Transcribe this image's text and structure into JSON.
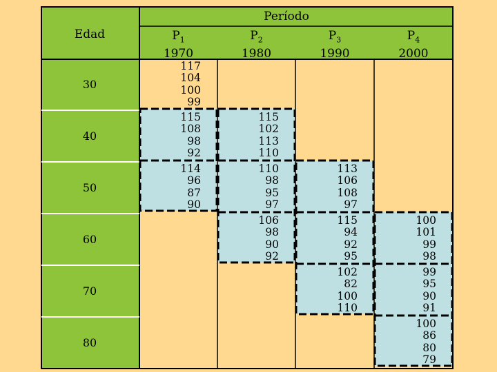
{
  "table": {
    "super_header": "Período",
    "corner_label": "Edad",
    "periods": [
      {
        "label": "P",
        "sub": "1",
        "year": "1970"
      },
      {
        "label": "P",
        "sub": "2",
        "year": "1980"
      },
      {
        "label": "P",
        "sub": "3",
        "year": "1990"
      },
      {
        "label": "P",
        "sub": "4",
        "year": "2000"
      }
    ],
    "ages": [
      "30",
      "40",
      "50",
      "60",
      "70",
      "80"
    ],
    "values": [
      [
        [
          "117",
          "104",
          "100",
          "99"
        ],
        [],
        [],
        []
      ],
      [
        [
          "115",
          "108",
          "98",
          "92"
        ],
        [
          "115",
          "102",
          "113",
          "110"
        ],
        [],
        []
      ],
      [
        [
          "114",
          "96",
          "87",
          "90"
        ],
        [
          "110",
          "98",
          "95",
          "97"
        ],
        [
          "113",
          "106",
          "108",
          "97"
        ],
        []
      ],
      [
        [],
        [
          "106",
          "98",
          "90",
          "92"
        ],
        [
          "115",
          "94",
          "92",
          "95"
        ],
        [
          "100",
          "101",
          "99",
          "98"
        ]
      ],
      [
        [],
        [],
        [
          "102",
          "82",
          "100",
          "110"
        ],
        [
          "99",
          "95",
          "90",
          "91"
        ]
      ],
      [
        [],
        [],
        [],
        [
          "100",
          "86",
          "80",
          "79"
        ]
      ]
    ],
    "highlighted_blocks": [
      {
        "period": 0,
        "rows": [
          1,
          2
        ]
      },
      {
        "period": 1,
        "rows": [
          1,
          3
        ]
      },
      {
        "period": 2,
        "rows": [
          2,
          4
        ]
      },
      {
        "period": 3,
        "rows": [
          3,
          5
        ]
      }
    ],
    "colors": {
      "background": "#FFD98F",
      "age_column": "#8DC43A",
      "highlight": "#BFE0E3",
      "grid": "#000000"
    }
  }
}
